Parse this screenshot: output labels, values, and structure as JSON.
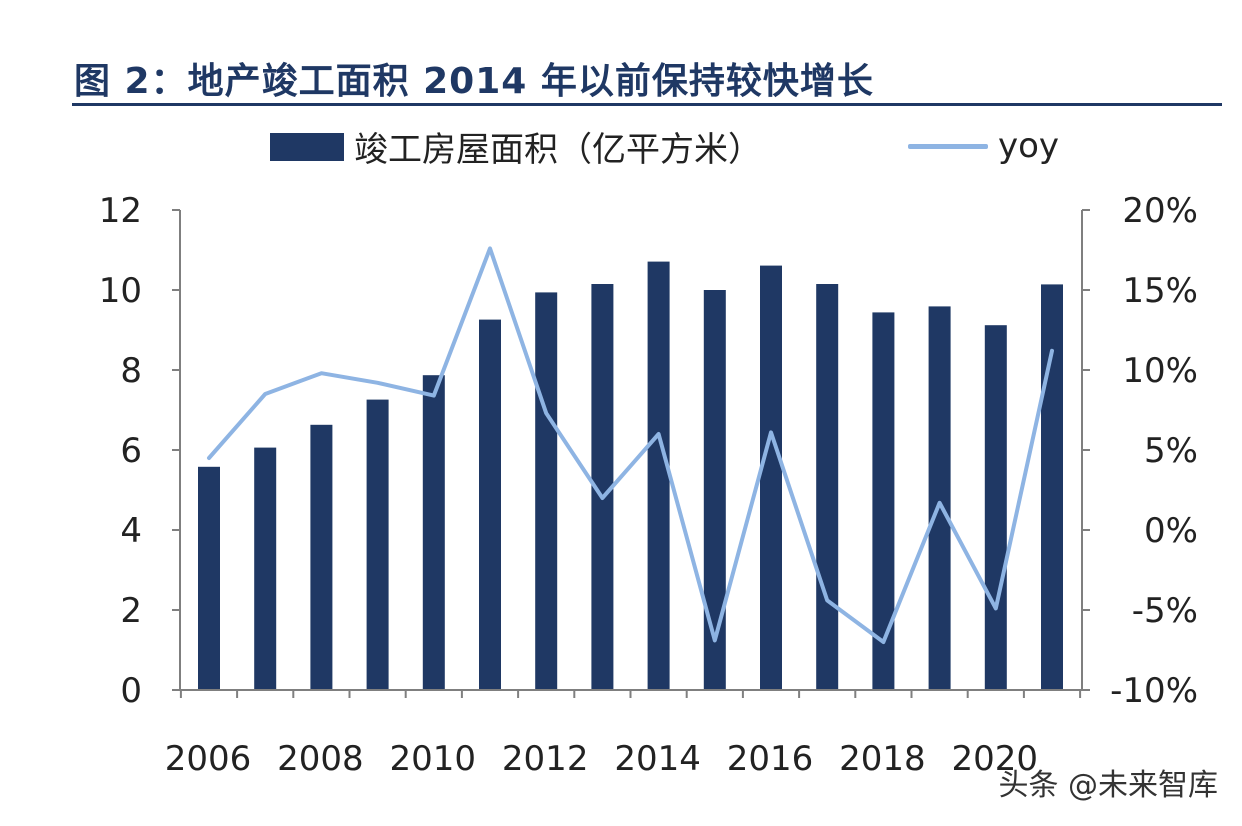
{
  "title": "图 2：地产竣工面积 2014 年以前保持较快增长",
  "watermark": "头条 @未来智库",
  "colors": {
    "bar": "#1f3864",
    "line": "#8eb4e3",
    "axis": "#7f7f7f",
    "title": "#1f3864"
  },
  "chart_data": {
    "type": "bar",
    "x": [
      2006,
      2007,
      2008,
      2009,
      2010,
      2011,
      2012,
      2013,
      2014,
      2015,
      2016,
      2017,
      2018,
      2019,
      2020,
      2021
    ],
    "x_tick_labels": [
      "2006",
      "2008",
      "2010",
      "2012",
      "2014",
      "2016",
      "2018",
      "2020"
    ],
    "series": [
      {
        "name": "竣工房屋面积（亿平方米）",
        "type": "bar",
        "axis": "left",
        "values": [
          5.58,
          6.06,
          6.63,
          7.26,
          7.87,
          9.26,
          9.94,
          10.15,
          10.71,
          10.0,
          10.61,
          10.15,
          9.44,
          9.59,
          9.12,
          10.14
        ]
      },
      {
        "name": "yoy",
        "type": "line",
        "axis": "right",
        "values": [
          4.5,
          8.5,
          9.8,
          9.2,
          8.4,
          17.6,
          7.3,
          2.0,
          6.0,
          -6.9,
          6.1,
          -4.4,
          -7.0,
          1.7,
          -4.9,
          11.2
        ]
      }
    ],
    "y_left": {
      "min": 0,
      "max": 12,
      "ticks": [
        "0",
        "2",
        "4",
        "6",
        "8",
        "10",
        "12"
      ]
    },
    "y_right": {
      "min": -10,
      "max": 20,
      "ticks": [
        "-10%",
        "-5%",
        "0%",
        "5%",
        "10%",
        "15%",
        "20%"
      ]
    },
    "grid": false,
    "legend_position": "top"
  }
}
